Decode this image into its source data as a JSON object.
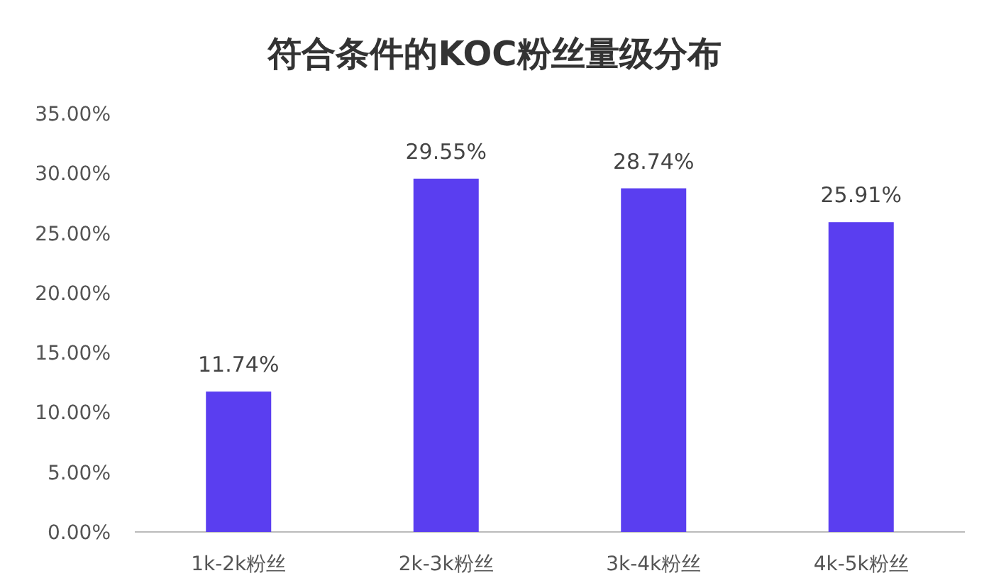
{
  "chart_data": {
    "type": "bar",
    "title": "符合条件的KOC粉丝量级分布",
    "categories": [
      "1k-2k粉丝",
      "2k-3k粉丝",
      "3k-4k粉丝",
      "4k-5k粉丝"
    ],
    "values": [
      11.74,
      29.55,
      28.74,
      25.91
    ],
    "value_labels": [
      "11.74%",
      "29.55%",
      "28.74%",
      "25.91%"
    ],
    "color": "#5a3ef0",
    "ylim": [
      0,
      35
    ],
    "yticks": [
      {
        "value": 0,
        "label": "0.00%"
      },
      {
        "value": 5,
        "label": "5.00%"
      },
      {
        "value": 10,
        "label": "10.00%"
      },
      {
        "value": 15,
        "label": "15.00%"
      },
      {
        "value": 20,
        "label": "20.00%"
      },
      {
        "value": 25,
        "label": "25.00%"
      },
      {
        "value": 30,
        "label": "30.00%"
      },
      {
        "value": 35,
        "label": "35.00%"
      }
    ],
    "grid": false
  }
}
